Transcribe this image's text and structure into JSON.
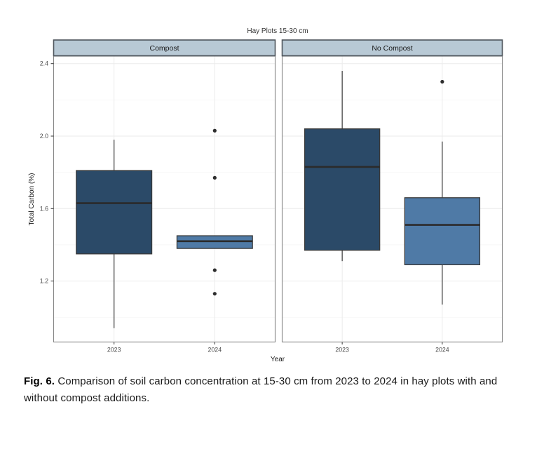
{
  "figure": {
    "title": "Hay Plots 15-30 cm"
  },
  "caption": {
    "label": "Fig. 6.",
    "text": "Comparison of soil carbon concentration at 15-30 cm from 2023 to 2024 in hay plots with and without compost additions."
  },
  "colors": {
    "box_dark": "#2B4A68",
    "box_light": "#4F7AA6",
    "box_border": "#3A3A3A",
    "median": "#2B2B2B",
    "whisker": "#3A3A3A",
    "outlier": "#2E2E2E",
    "strip_fill": "#B8C9D5",
    "strip_border": "#4E555C",
    "panel_border": "#858585",
    "panel_background": "#FFFFFF",
    "grid_major": "#EBEBEB",
    "grid_minor": "#F5F5F5",
    "tick_mark": "#333333",
    "tick_label": "#4D4D4D",
    "axis_title": "#1A1A1A",
    "title_text": "#333333"
  },
  "chart_data": {
    "type": "boxplot",
    "title": "Hay Plots 15-30 cm",
    "xlabel": "Year",
    "ylabel": "Total Carbon (%)",
    "ylim": [
      0.86,
      2.44
    ],
    "y_ticks": [
      2.4,
      2.0,
      1.6,
      1.2
    ],
    "y_minor_ticks": [
      2.2,
      1.8,
      1.4,
      1.0
    ],
    "grid": true,
    "facets": [
      {
        "label": "Compost",
        "boxes": [
          {
            "category": "2023",
            "color_key": "box_dark",
            "whisker_low": 0.94,
            "q1": 1.35,
            "median": 1.63,
            "q3": 1.81,
            "whisker_high": 1.98,
            "outliers": []
          },
          {
            "category": "2024",
            "color_key": "box_light",
            "whisker_low": 1.38,
            "q1": 1.38,
            "median": 1.42,
            "q3": 1.45,
            "whisker_high": 1.45,
            "outliers": [
              2.03,
              1.77,
              1.26,
              1.13
            ]
          }
        ]
      },
      {
        "label": "No Compost",
        "boxes": [
          {
            "category": "2023",
            "color_key": "box_dark",
            "whisker_low": 1.31,
            "q1": 1.37,
            "median": 1.83,
            "q3": 2.04,
            "whisker_high": 2.36,
            "outliers": []
          },
          {
            "category": "2024",
            "color_key": "box_light",
            "whisker_low": 1.07,
            "q1": 1.29,
            "median": 1.51,
            "q3": 1.66,
            "whisker_high": 1.97,
            "outliers": [
              2.3
            ]
          }
        ]
      }
    ]
  }
}
